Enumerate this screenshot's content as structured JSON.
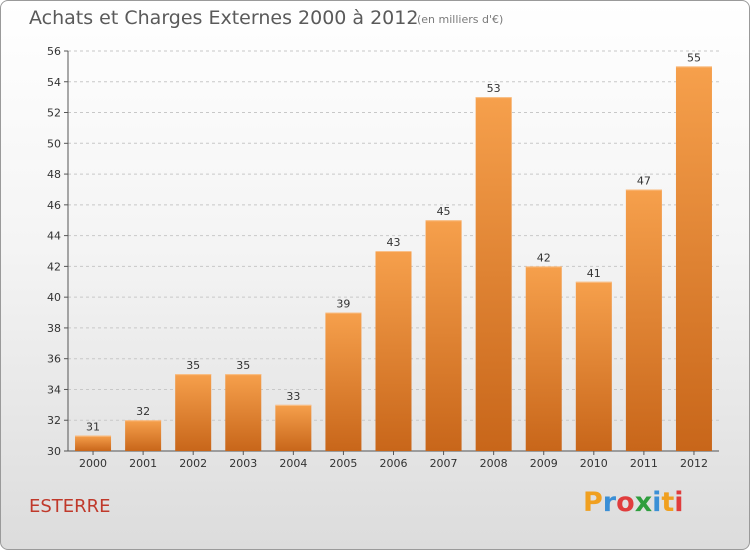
{
  "header": {
    "title": "Achats et Charges Externes 2000 à 2012",
    "unit": "(en milliers d'€)"
  },
  "footer": {
    "commune": "ESTERRE",
    "logo_letters": [
      "P",
      "r",
      "o",
      "x",
      "i",
      "t",
      "i"
    ],
    "logo_colors": [
      "#f0a020",
      "#3a8fd6",
      "#e03c3c",
      "#2e9e3e",
      "#3a8fd6",
      "#f0a020",
      "#e03c3c"
    ]
  },
  "chart_data": {
    "type": "bar",
    "title": "Achats et Charges Externes 2000 à 2012",
    "subtitle": "(en milliers d'€)",
    "categories": [
      "2000",
      "2001",
      "2002",
      "2003",
      "2004",
      "2005",
      "2006",
      "2007",
      "2008",
      "2009",
      "2010",
      "2011",
      "2012"
    ],
    "values": [
      31,
      32,
      35,
      35,
      33,
      39,
      43,
      45,
      53,
      42,
      41,
      47,
      55
    ],
    "ylim": [
      30,
      56
    ],
    "yticks": [
      30,
      32,
      34,
      36,
      38,
      40,
      42,
      44,
      46,
      48,
      50,
      52,
      54,
      56
    ],
    "grid": true,
    "bar_color_top": "#f6a04c",
    "bar_color_bottom": "#c8661a"
  }
}
